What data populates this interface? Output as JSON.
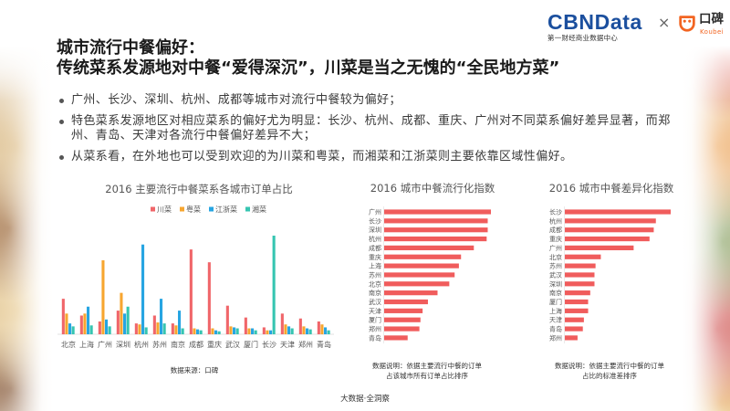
{
  "header": {
    "title_line1": "城市流行中餐偏好：",
    "title_line2": "传统菜系发源地对中餐“爱得深沉”，川菜是当之无愧的“全民地方菜”"
  },
  "logos": {
    "cbn_a": "CBN",
    "cbn_b": "Data",
    "cbn_sub": "第一财经商业数据中心",
    "times": "×",
    "koubei_cn": "口碑",
    "koubei_en": "Koubei",
    "cbn_color": "#1b4f9e",
    "koubei_color": "#f26522"
  },
  "bullets": [
    "广州、长沙、深圳、杭州、成都等城市对流行中餐较为偏好；",
    "特色菜系发源地区对相应菜系的偏好尤为明显：长沙、杭州、成都、重庆、广州对不同菜系偏好差异显著，而郑州、青岛、天津对各流行中餐偏好差异不大；",
    "从菜系看，在外地也可以受到欢迎的为川菜和粤菜，而湘菜和江浙菜则主要依靠区域性偏好。"
  ],
  "chart_data": [
    {
      "type": "bar",
      "title": "2016 主要流行中餐菜系各城市订单占比",
      "categories": [
        "北京",
        "上海",
        "广州",
        "深圳",
        "杭州",
        "苏州",
        "南京",
        "成都",
        "重庆",
        "武汉",
        "厦门",
        "长沙",
        "天津",
        "郑州",
        "青岛"
      ],
      "series": [
        {
          "name": "川菜",
          "color": "#f0666a",
          "values": [
            36,
            19,
            13,
            24,
            11,
            19,
            11,
            86,
            73,
            29,
            17,
            7,
            21,
            16,
            13
          ]
        },
        {
          "name": "粤菜",
          "color": "#f7a630",
          "values": [
            21,
            21,
            75,
            42,
            10,
            12,
            9,
            6,
            6,
            8,
            6,
            4,
            10,
            8,
            10
          ]
        },
        {
          "name": "江浙菜",
          "color": "#27a5e2",
          "values": [
            11,
            28,
            15,
            21,
            91,
            36,
            24,
            5,
            4,
            7,
            6,
            4,
            8,
            6,
            7
          ]
        },
        {
          "name": "湘菜",
          "color": "#36c5b1",
          "values": [
            8,
            9,
            8,
            28,
            7,
            11,
            6,
            4,
            3,
            6,
            4,
            100,
            6,
            5,
            4
          ]
        }
      ],
      "legend": "top",
      "grid": false,
      "source": "数据来源：口碑"
    },
    {
      "type": "bar",
      "orientation": "horizontal",
      "title": "2016 城市中餐流行化指数",
      "categories": [
        "广州",
        "长沙",
        "深圳",
        "杭州",
        "成都",
        "重庆",
        "上海",
        "苏州",
        "北京",
        "南京",
        "武汉",
        "天津",
        "厦门",
        "郑州",
        "青岛"
      ],
      "values": [
        100,
        97,
        97,
        96,
        84,
        72,
        70,
        66,
        61,
        50,
        41,
        36,
        34,
        33,
        22
      ],
      "color": "#f05c5c",
      "grid": false,
      "note": [
        "数据说明：依据主要流行中餐的订单",
        "占该城市所有订单占比排序"
      ]
    },
    {
      "type": "bar",
      "orientation": "horizontal",
      "title": "2016 城市中餐差异化指数",
      "categories": [
        "长沙",
        "杭州",
        "成都",
        "重庆",
        "广州",
        "北京",
        "苏州",
        "武汉",
        "深圳",
        "南京",
        "厦门",
        "上海",
        "天津",
        "青岛",
        "郑州"
      ],
      "values": [
        100,
        86,
        84,
        80,
        65,
        34,
        29,
        28,
        28,
        24,
        22,
        22,
        18,
        17,
        12
      ],
      "color": "#f05c5c",
      "grid": false,
      "note": [
        "数据说明：依据主要流行中餐的订单",
        "占比的标准差排序"
      ]
    }
  ],
  "footer": "大数据·全洞察"
}
